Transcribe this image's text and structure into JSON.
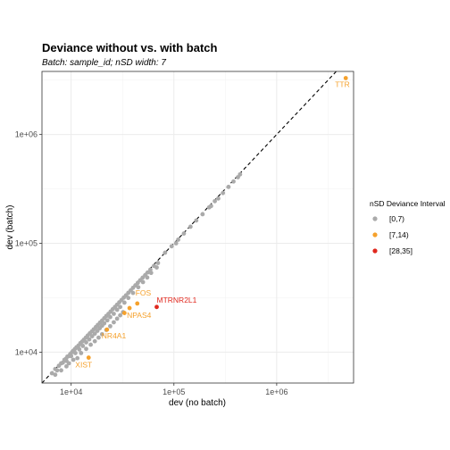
{
  "chart_data": {
    "type": "scatter",
    "title": "Deviance without vs. with batch",
    "subtitle": "Batch: sample_id; nSD width: 7",
    "xlabel": "dev (no batch)",
    "ylabel": "dev (batch)",
    "x_scale": "log10",
    "y_scale": "log10",
    "xlim": [
      5200,
      5600000
    ],
    "ylim": [
      5200,
      3800000
    ],
    "x_ticks": [
      {
        "value": 10000,
        "label": "1e+04"
      },
      {
        "value": 100000,
        "label": "1e+05"
      },
      {
        "value": 1000000,
        "label": "1e+06"
      }
    ],
    "y_ticks": [
      {
        "value": 10000,
        "label": "1e+04"
      },
      {
        "value": 100000,
        "label": "1e+05"
      },
      {
        "value": 1000000,
        "label": "1e+06"
      }
    ],
    "grid": true,
    "reference_line": {
      "type": "identity",
      "style": "dashed"
    },
    "legend": {
      "title": "nSD Deviance Interval",
      "position": "right",
      "entries": [
        {
          "label": "[0,7)",
          "color": "#AAAAAA"
        },
        {
          "label": "[7,14)",
          "color": "#F5A12C"
        },
        {
          "label": "[28,35]",
          "color": "#E0281E"
        }
      ]
    },
    "series": [
      {
        "name": "[0,7)",
        "color": "#AAAAAA",
        "points": [
          [
            6500,
            6400
          ],
          [
            7000,
            7000
          ],
          [
            7300,
            6800
          ],
          [
            7600,
            7500
          ],
          [
            8000,
            7900
          ],
          [
            8300,
            8000
          ],
          [
            8600,
            8500
          ],
          [
            8900,
            8700
          ],
          [
            9200,
            9100
          ],
          [
            9500,
            9200
          ],
          [
            9800,
            9600
          ],
          [
            10200,
            10000
          ],
          [
            10500,
            10300
          ],
          [
            10900,
            10700
          ],
          [
            11300,
            11100
          ],
          [
            11800,
            11500
          ],
          [
            12300,
            12100
          ],
          [
            12800,
            12500
          ],
          [
            13300,
            13000
          ],
          [
            13900,
            13600
          ],
          [
            14500,
            14200
          ],
          [
            15200,
            14900
          ],
          [
            15900,
            15500
          ],
          [
            16600,
            16200
          ],
          [
            17400,
            17000
          ],
          [
            18200,
            17800
          ],
          [
            19100,
            18700
          ],
          [
            20000,
            19500
          ],
          [
            21000,
            20500
          ],
          [
            22000,
            21500
          ],
          [
            23100,
            22500
          ],
          [
            24200,
            23600
          ],
          [
            25400,
            24800
          ],
          [
            26700,
            26000
          ],
          [
            28000,
            27300
          ],
          [
            29400,
            28700
          ],
          [
            30900,
            30100
          ],
          [
            32500,
            31700
          ],
          [
            34200,
            33300
          ],
          [
            36000,
            35100
          ],
          [
            38000,
            37000
          ],
          [
            40000,
            39000
          ],
          [
            42200,
            41100
          ],
          [
            44500,
            43300
          ],
          [
            47000,
            45800
          ],
          [
            49600,
            48300
          ],
          [
            52500,
            51000
          ],
          [
            55500,
            54000
          ],
          [
            59000,
            57300
          ],
          [
            64000,
            62000
          ],
          [
            70000,
            66000
          ],
          [
            9000,
            8300
          ],
          [
            10000,
            9200
          ],
          [
            11000,
            9800
          ],
          [
            12000,
            10600
          ],
          [
            13000,
            11400
          ],
          [
            14000,
            12300
          ],
          [
            15000,
            13100
          ],
          [
            16000,
            14000
          ],
          [
            17000,
            14800
          ],
          [
            18000,
            15700
          ],
          [
            19000,
            16600
          ],
          [
            20000,
            17500
          ],
          [
            21000,
            18400
          ],
          [
            22500,
            19600
          ],
          [
            24000,
            21000
          ],
          [
            26000,
            22500
          ],
          [
            28000,
            24500
          ],
          [
            30000,
            26000
          ],
          [
            33000,
            28500
          ],
          [
            36000,
            31500
          ],
          [
            40000,
            35000
          ],
          [
            45000,
            39500
          ],
          [
            50000,
            44000
          ],
          [
            55000,
            48500
          ],
          [
            60000,
            53500
          ],
          [
            68000,
            60000
          ],
          [
            8000,
            6800
          ],
          [
            9000,
            7400
          ],
          [
            10500,
            8500
          ],
          [
            11500,
            8800
          ],
          [
            12500,
            9800
          ],
          [
            14000,
            10700
          ],
          [
            15500,
            11700
          ],
          [
            17000,
            12600
          ],
          [
            18500,
            13600
          ],
          [
            20000,
            14600
          ],
          [
            22000,
            16000
          ],
          [
            24000,
            17300
          ],
          [
            26000,
            18800
          ],
          [
            28000,
            20300
          ],
          [
            30000,
            21800
          ],
          [
            32000,
            23300
          ],
          [
            7000,
            6200
          ],
          [
            9500,
            7900
          ],
          [
            82000,
            82000
          ],
          [
            95000,
            94000
          ],
          [
            110000,
            108000
          ],
          [
            125000,
            123000
          ],
          [
            145000,
            142000
          ],
          [
            165000,
            162000
          ],
          [
            190000,
            185000
          ],
          [
            220000,
            214000
          ],
          [
            250000,
            244000
          ],
          [
            270000,
            258000
          ],
          [
            300000,
            290000
          ],
          [
            340000,
            330000
          ],
          [
            380000,
            370000
          ],
          [
            420000,
            405000
          ],
          [
            440000,
            430000
          ],
          [
            230000,
            220000
          ],
          [
            105000,
            100000
          ]
        ]
      },
      {
        "name": "[7,14)",
        "color": "#F5A12C",
        "points": [
          [
            4700000,
            3300000
          ],
          [
            14800,
            8900
          ],
          [
            22300,
            16100
          ],
          [
            33000,
            22900
          ],
          [
            37000,
            25400
          ],
          [
            44000,
            28000
          ]
        ]
      },
      {
        "name": "[28,35]",
        "color": "#E0281E",
        "points": [
          [
            68000,
            26000
          ]
        ]
      }
    ],
    "annotations": [
      {
        "label": "TTR",
        "x": 4700000,
        "y": 3300000,
        "color": "#F5A12C"
      },
      {
        "label": "FOS",
        "x": 44000,
        "y": 28000,
        "color": "#F5A12C"
      },
      {
        "label": "NPAS4",
        "x": 37000,
        "y": 25400,
        "color": "#F5A12C"
      },
      {
        "label": "NR4A1",
        "x": 22300,
        "y": 16100,
        "color": "#F5A12C"
      },
      {
        "label": "XIST",
        "x": 14800,
        "y": 8900,
        "color": "#F5A12C"
      },
      {
        "label": "MTRNR2L1",
        "x": 68000,
        "y": 26000,
        "color": "#E0281E"
      }
    ]
  }
}
